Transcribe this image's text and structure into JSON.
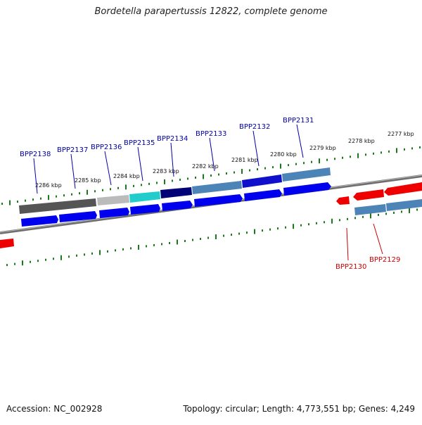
{
  "title": "Bordetella parapertussis 12822, complete genome",
  "footer": {
    "accession": "Accession: NC_002928",
    "summary": "Topology: circular; Length: 4,773,551 bp; Genes: 4,249"
  },
  "colors": {
    "plus_gene": "#0000ee",
    "minus_gene": "#ee0000",
    "plus_label": "#0000aa",
    "minus_label": "#cc0000",
    "tick": "#1a7a1a",
    "backbone": "#777777"
  },
  "scale_labels": [
    "2286 kbp",
    "2285 kbp",
    "2284 kbp",
    "2283 kbp",
    "2282 kbp",
    "2281 kbp",
    "2280 kbp",
    "2279 kbp",
    "2278 kbp",
    "2277 kbp"
  ],
  "plus_genes": [
    "BPP2138",
    "BPP2137",
    "BPP2136",
    "BPP2135",
    "BPP2134",
    "BPP2133",
    "BPP2132",
    "BPP2131"
  ],
  "minus_genes": [
    "BPP2130",
    "BPP2129"
  ]
}
